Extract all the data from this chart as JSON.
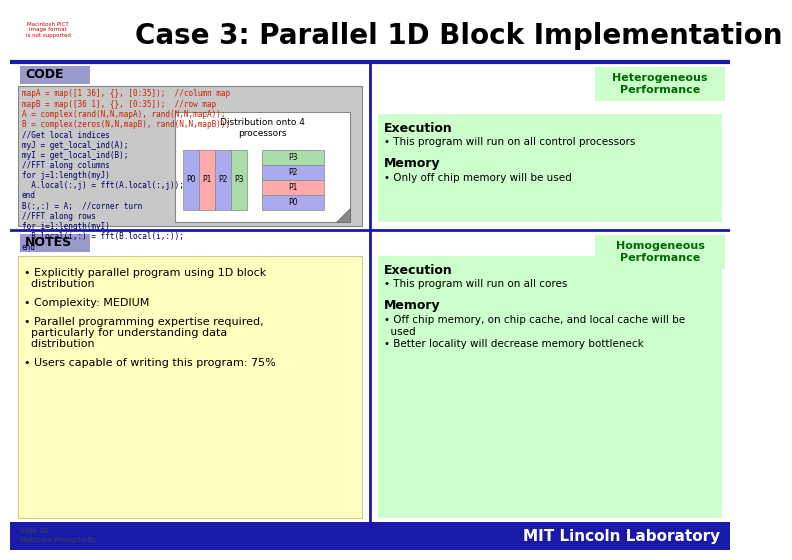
{
  "title": "Case 3: Parallel 1D Block Implementation",
  "bg_color": "#ffffff",
  "title_color": "#000000",
  "title_fontsize": 20,
  "code_label": "CODE",
  "notes_label": "NOTES",
  "het_perf_label": "Heterogeneous\nPerformance",
  "hom_perf_label": "Homogeneous\nPerformance",
  "het_perf_color": "#ccffcc",
  "hom_perf_color": "#ccffcc",
  "code_bg": "#c8c8c8",
  "notes_bg": "#ffffc0",
  "code_text": [
    "mapA = map([1 36], {}, [0:35]);  //column map",
    "mapB = map([36 1], {}, [0:35]);  //row map",
    "A = complex(rand(N,N,mapA), rand(N,N,mapA));",
    "B = complex(zeros(N,N,mapB), rand(N,N,mapB));",
    "//Get local indices",
    "myJ = get_local_ind(A);",
    "myI = get_local_ind(B);",
    "//FFT along columns",
    "for j=1:length(myJ)",
    "  A.local(:,j) = fft(A.local(:,j));",
    "end",
    "B(:,:) = A;  //corner turn",
    "//FFT along rows",
    "for i=1:length(myI)",
    "  B.local(i,:) = fft(B.local(i,:));",
    "end"
  ],
  "code_red_indices": [
    0,
    1,
    2,
    3
  ],
  "notes_text": [
    "• Explicitly parallel program using 1D block\n  distribution",
    "• Complexity: MEDIUM",
    "• Parallel programming expertise required,\n  particularly for understanding data\n  distribution",
    "• Users capable of writing this program: 75%"
  ],
  "exec_het_title": "Execution",
  "exec_het_bullet": "• This program will run on all control processors",
  "mem_het_title": "Memory",
  "mem_het_bullet": "• Only off chip memory will be used",
  "exec_hom_title": "Execution",
  "exec_hom_bullet": "• This program will run on all cores",
  "mem_hom_title": "Memory",
  "mem_hom_bullets": [
    "• Off chip memory, on chip cache, and local cache will be",
    "  used",
    "• Better locality will decrease memory bottleneck"
  ],
  "dist_label": "Distribution onto 4\nprocessors",
  "footer_text": "MIT Lincoln Laboratory",
  "slide_line1": "Slide 26",
  "slide_line2": "Multicore Productivity",
  "divider_color": "#1a1aaa",
  "label_bg_color": "#9999cc",
  "right_exec_mem_bg": "#ccffcc",
  "left_col_colors": [
    "#aaaaee",
    "#ffaaaa",
    "#aaaaee",
    "#aaddaa"
  ],
  "right_row_colors": [
    "#aaaaee",
    "#ffaaaa",
    "#aaaaee",
    "#aaddaa"
  ]
}
